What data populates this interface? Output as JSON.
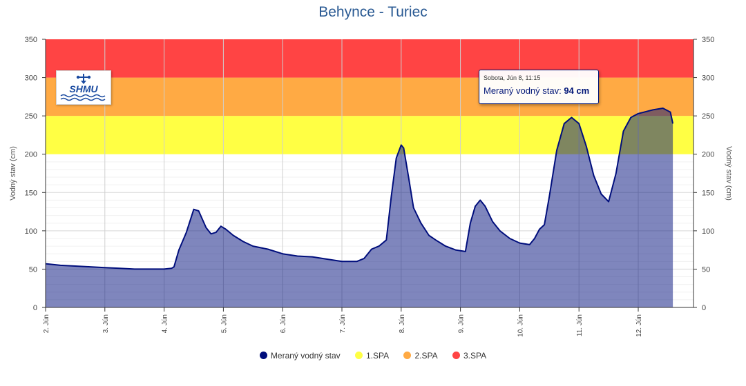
{
  "chart_data": {
    "type": "area",
    "title": "Behynce - Turiec",
    "ylabel_left": "Vodný stav (cm)",
    "ylabel_right": "Vodný stav (cm)",
    "ylim": [
      0,
      350
    ],
    "y_ticks": [
      0,
      50,
      100,
      150,
      200,
      250,
      300,
      350
    ],
    "x_range_days": [
      "1. Jún 24:00",
      "13. Jún 14:00"
    ],
    "x_ticks": [
      "2. Jún",
      "3. Jún",
      "4. Jún",
      "5. Jún",
      "6. Jún",
      "7. Jún",
      "8. Jún",
      "9. Jún",
      "10. Jún",
      "11. Jún",
      "12. Jún"
    ],
    "grid": true,
    "legend_position": "bottom",
    "series": [
      {
        "name": "Meraný vodný stav",
        "color": "#000e7c",
        "points": [
          [
            "2. Jún 00:00",
            57
          ],
          [
            "2. Jún 06:00",
            55
          ],
          [
            "2. Jún 12:00",
            54
          ],
          [
            "2. Jún 18:00",
            53
          ],
          [
            "3. Jún 00:00",
            52
          ],
          [
            "3. Jún 06:00",
            51
          ],
          [
            "3. Jún 12:00",
            50
          ],
          [
            "3. Jún 18:00",
            50
          ],
          [
            "4. Jún 00:00",
            50
          ],
          [
            "4. Jún 03:00",
            51
          ],
          [
            "4. Jún 04:00",
            53
          ],
          [
            "4. Jún 06:00",
            75
          ],
          [
            "4. Jún 09:00",
            98
          ],
          [
            "4. Jún 12:00",
            128
          ],
          [
            "4. Jún 14:00",
            126
          ],
          [
            "4. Jún 17:00",
            104
          ],
          [
            "4. Jún 19:00",
            96
          ],
          [
            "4. Jún 21:00",
            98
          ],
          [
            "4. Jún 23:00",
            106
          ],
          [
            "5. Jún 01:00",
            102
          ],
          [
            "5. Jún 04:00",
            94
          ],
          [
            "5. Jún 08:00",
            86
          ],
          [
            "5. Jún 12:00",
            80
          ],
          [
            "5. Jún 18:00",
            76
          ],
          [
            "6. Jún 00:00",
            70
          ],
          [
            "6. Jún 06:00",
            67
          ],
          [
            "6. Jún 12:00",
            66
          ],
          [
            "6. Jún 18:00",
            63
          ],
          [
            "7. Jún 00:00",
            60
          ],
          [
            "7. Jún 06:00",
            60
          ],
          [
            "7. Jún 09:00",
            64
          ],
          [
            "7. Jún 12:00",
            76
          ],
          [
            "7. Jún 15:00",
            80
          ],
          [
            "7. Jún 18:00",
            88
          ],
          [
            "7. Jún 20:00",
            145
          ],
          [
            "7. Jún 22:00",
            195
          ],
          [
            "8. Jún 00:00",
            212
          ],
          [
            "8. Jún 01:00",
            208
          ],
          [
            "8. Jún 03:00",
            170
          ],
          [
            "8. Jún 05:00",
            130
          ],
          [
            "8. Jún 08:00",
            110
          ],
          [
            "8. Jún 11:15",
            94
          ],
          [
            "8. Jún 14:00",
            88
          ],
          [
            "8. Jún 18:00",
            80
          ],
          [
            "8. Jún 22:00",
            75
          ],
          [
            "9. Jún 02:00",
            73
          ],
          [
            "9. Jún 04:00",
            110
          ],
          [
            "9. Jún 06:00",
            132
          ],
          [
            "9. Jún 08:00",
            140
          ],
          [
            "9. Jún 10:00",
            132
          ],
          [
            "9. Jún 13:00",
            112
          ],
          [
            "9. Jún 16:00",
            100
          ],
          [
            "9. Jún 20:00",
            90
          ],
          [
            "10. Jún 00:00",
            84
          ],
          [
            "10. Jún 04:00",
            82
          ],
          [
            "10. Jún 06:00",
            90
          ],
          [
            "10. Jún 08:00",
            102
          ],
          [
            "10. Jún 10:00",
            108
          ],
          [
            "10. Jún 12:00",
            145
          ],
          [
            "10. Jún 15:00",
            205
          ],
          [
            "10. Jún 18:00",
            240
          ],
          [
            "10. Jún 21:00",
            248
          ],
          [
            "11. Jún 00:00",
            240
          ],
          [
            "11. Jún 03:00",
            210
          ],
          [
            "11. Jún 06:00",
            172
          ],
          [
            "11. Jún 09:00",
            148
          ],
          [
            "11. Jún 12:00",
            138
          ],
          [
            "11. Jún 15:00",
            175
          ],
          [
            "11. Jún 18:00",
            230
          ],
          [
            "11. Jún 21:00",
            248
          ],
          [
            "12. Jún 00:00",
            253
          ],
          [
            "12. Jún 06:00",
            258
          ],
          [
            "12. Jún 10:00",
            260
          ],
          [
            "12. Jún 13:00",
            255
          ],
          [
            "12. Jún 14:00",
            240
          ]
        ]
      }
    ],
    "thresholds": [
      {
        "name": "1.SPA",
        "from": 200,
        "to": 250,
        "color": "#ffff44"
      },
      {
        "name": "2.SPA",
        "from": 250,
        "to": 300,
        "color": "#ffaa44"
      },
      {
        "name": "3.SPA",
        "from": 300,
        "to": 350,
        "color": "#ff4444"
      }
    ]
  },
  "tooltip": {
    "date": "Sobota, Jún 8, 11:15",
    "series_label": "Meraný vodný stav:",
    "value": "94 cm"
  },
  "logo": {
    "text": "SHMU"
  },
  "legend": [
    {
      "label": "Meraný vodný stav",
      "color": "#000e7c"
    },
    {
      "label": "1.SPA",
      "color": "#ffff44"
    },
    {
      "label": "2.SPA",
      "color": "#ffaa44"
    },
    {
      "label": "3.SPA",
      "color": "#ff4444"
    }
  ]
}
